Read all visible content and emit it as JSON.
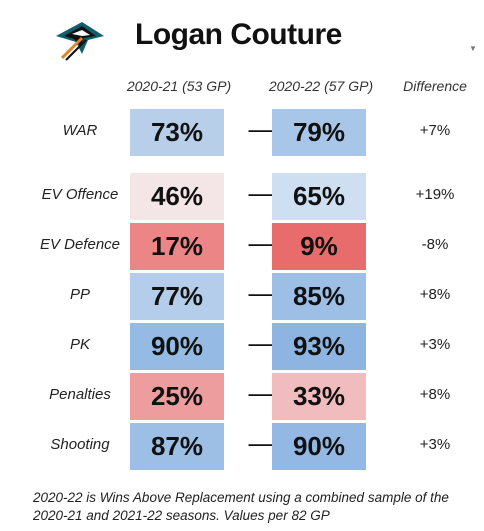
{
  "player_name": "Logan Couture",
  "logo_icon": "sharks-logo-icon",
  "headers": {
    "season1": "2020-21 (53 GP)",
    "season2": "2020-22 (57 GP)",
    "difference": "Difference"
  },
  "arrow_glyph": "⟶",
  "rows": [
    {
      "label": "WAR",
      "v1": "73%",
      "v2": "79%",
      "diff": "+7%",
      "c1": "#b7cfe9",
      "c2": "#a7c6e8"
    },
    {
      "label": "EV Offence",
      "v1": "46%",
      "v2": "65%",
      "diff": "+19%",
      "c1": "#f4e5e6",
      "c2": "#cddff0"
    },
    {
      "label": "EV Defence",
      "v1": "17%",
      "v2": "9%",
      "diff": "-8%",
      "c1": "#ec8686",
      "c2": "#e86c6c"
    },
    {
      "label": "PP",
      "v1": "77%",
      "v2": "85%",
      "diff": "+8%",
      "c1": "#b4cdea",
      "c2": "#9dbfe6"
    },
    {
      "label": "PK",
      "v1": "90%",
      "v2": "93%",
      "diff": "+3%",
      "c1": "#95bae3",
      "c2": "#8eb5e2"
    },
    {
      "label": "Penalties",
      "v1": "25%",
      "v2": "33%",
      "diff": "+8%",
      "c1": "#ee9d9e",
      "c2": "#f1bcbe"
    },
    {
      "label": "Shooting",
      "v1": "87%",
      "v2": "90%",
      "diff": "+3%",
      "c1": "#9dbfe6",
      "c2": "#93b8e4"
    }
  ],
  "footnote": "2020-22 is Wins Above Replacement using a combined sample of the 2020-21 and 2021-22 seasons. Values per 82 GP"
}
